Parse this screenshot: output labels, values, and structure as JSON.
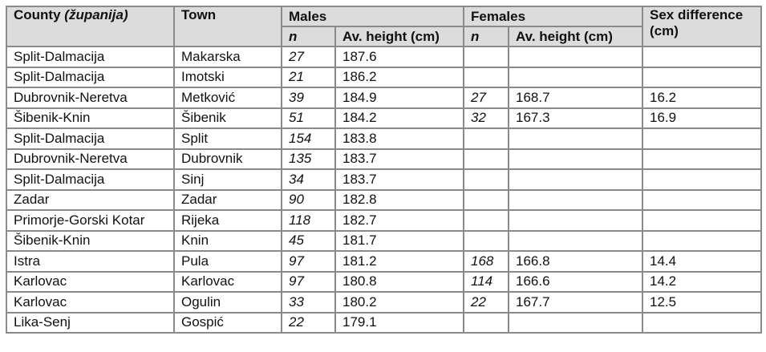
{
  "headers": {
    "county": "County",
    "county_native": "(županija)",
    "town": "Town",
    "males": "Males",
    "females": "Females",
    "sex_difference": "Sex difference",
    "sex_difference_unit": "(cm)",
    "n": "n",
    "av_height": "Av. height (cm)"
  },
  "rows": [
    {
      "county": "Split-Dalmacija",
      "town": "Makarska",
      "m_n": "27",
      "m_h": "187.6",
      "f_n": "",
      "f_h": "",
      "diff": ""
    },
    {
      "county": "Split-Dalmacija",
      "town": "Imotski",
      "m_n": "21",
      "m_h": "186.2",
      "f_n": "",
      "f_h": "",
      "diff": ""
    },
    {
      "county": "Dubrovnik-Neretva",
      "town": "Metković",
      "m_n": "39",
      "m_h": "184.9",
      "f_n": "27",
      "f_h": "168.7",
      "diff": "16.2"
    },
    {
      "county": "Šibenik-Knin",
      "town": "Šibenik",
      "m_n": "51",
      "m_h": "184.2",
      "f_n": "32",
      "f_h": "167.3",
      "diff": "16.9"
    },
    {
      "county": "Split-Dalmacija",
      "town": "Split",
      "m_n": "154",
      "m_h": "183.8",
      "f_n": "",
      "f_h": "",
      "diff": ""
    },
    {
      "county": "Dubrovnik-Neretva",
      "town": "Dubrovnik",
      "m_n": "135",
      "m_h": "183.7",
      "f_n": "",
      "f_h": "",
      "diff": ""
    },
    {
      "county": "Split-Dalmacija",
      "town": "Sinj",
      "m_n": "34",
      "m_h": "183.7",
      "f_n": "",
      "f_h": "",
      "diff": ""
    },
    {
      "county": "Zadar",
      "town": "Zadar",
      "m_n": "90",
      "m_h": "182.8",
      "f_n": "",
      "f_h": "",
      "diff": ""
    },
    {
      "county": "Primorje-Gorski Kotar",
      "town": "Rijeka",
      "m_n": "118",
      "m_h": "182.7",
      "f_n": "",
      "f_h": "",
      "diff": ""
    },
    {
      "county": "Šibenik-Knin",
      "town": "Knin",
      "m_n": "45",
      "m_h": "181.7",
      "f_n": "",
      "f_h": "",
      "diff": ""
    },
    {
      "county": "Istra",
      "town": "Pula",
      "m_n": "97",
      "m_h": "181.2",
      "f_n": "168",
      "f_h": "166.8",
      "diff": "14.4"
    },
    {
      "county": "Karlovac",
      "town": "Karlovac",
      "m_n": "97",
      "m_h": "180.8",
      "f_n": "114",
      "f_h": "166.6",
      "diff": "14.2"
    },
    {
      "county": "Karlovac",
      "town": "Ogulin",
      "m_n": "33",
      "m_h": "180.2",
      "f_n": "22",
      "f_h": "167.7",
      "diff": "12.5"
    },
    {
      "county": "Lika-Senj",
      "town": "Gospić",
      "m_n": "22",
      "m_h": "179.1",
      "f_n": "",
      "f_h": "",
      "diff": ""
    }
  ]
}
